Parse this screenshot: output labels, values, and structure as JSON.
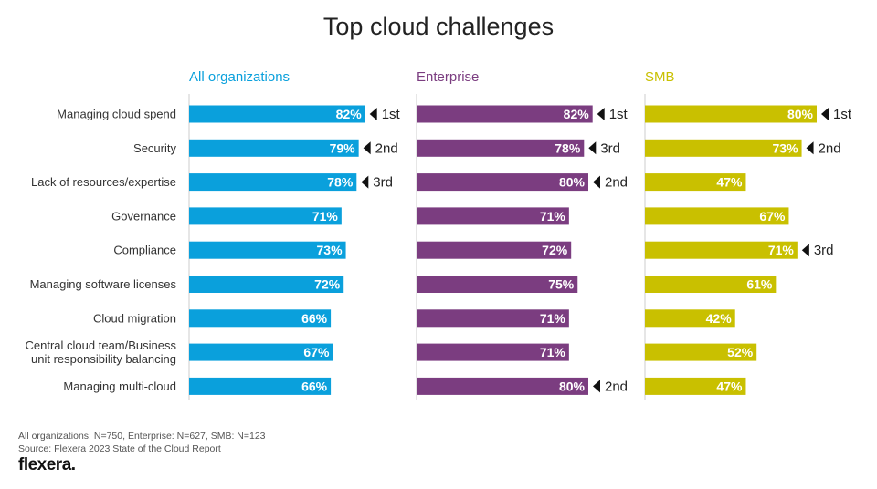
{
  "title": "Top cloud challenges",
  "colors": {
    "all": "#0aa0dc",
    "enterprise": "#7b3d80",
    "smb": "#c9c000",
    "divider": "#cccccc"
  },
  "chart_data": {
    "type": "bar",
    "orientation": "horizontal",
    "title": "Top cloud challenges",
    "categories": [
      [
        "Managing cloud spend"
      ],
      [
        "Security"
      ],
      [
        "Lack of resources/expertise"
      ],
      [
        "Governance"
      ],
      [
        "Compliance"
      ],
      [
        "Managing software licenses"
      ],
      [
        "Cloud migration"
      ],
      [
        "Central cloud team/Business",
        "unit responsibility balancing"
      ],
      [
        "Managing multi-cloud"
      ]
    ],
    "series": [
      {
        "name": "All organizations",
        "color_key": "all",
        "values": [
          82,
          79,
          78,
          71,
          73,
          72,
          66,
          67,
          66
        ],
        "ranks": [
          "1st",
          "2nd",
          "3rd",
          "",
          "",
          "",
          "",
          "",
          ""
        ]
      },
      {
        "name": "Enterprise",
        "color_key": "enterprise",
        "values": [
          82,
          78,
          80,
          71,
          72,
          75,
          71,
          71,
          80
        ],
        "ranks": [
          "1st",
          "3rd",
          "2nd",
          "",
          "",
          "",
          "",
          "",
          "2nd"
        ]
      },
      {
        "name": "SMB",
        "color_key": "smb",
        "values": [
          80,
          73,
          47,
          67,
          71,
          61,
          42,
          52,
          47
        ],
        "ranks": [
          "1st",
          "2nd",
          "",
          "",
          "3rd",
          "",
          "",
          "",
          ""
        ]
      }
    ],
    "value_suffix": "%",
    "grid": false,
    "legend": "column headers"
  },
  "footnote": {
    "line1": "All organizations: N=750, Enterprise: N=627, SMB: N=123",
    "line2": "Source: Flexera 2023 State of the Cloud Report"
  },
  "logo": "flexera."
}
